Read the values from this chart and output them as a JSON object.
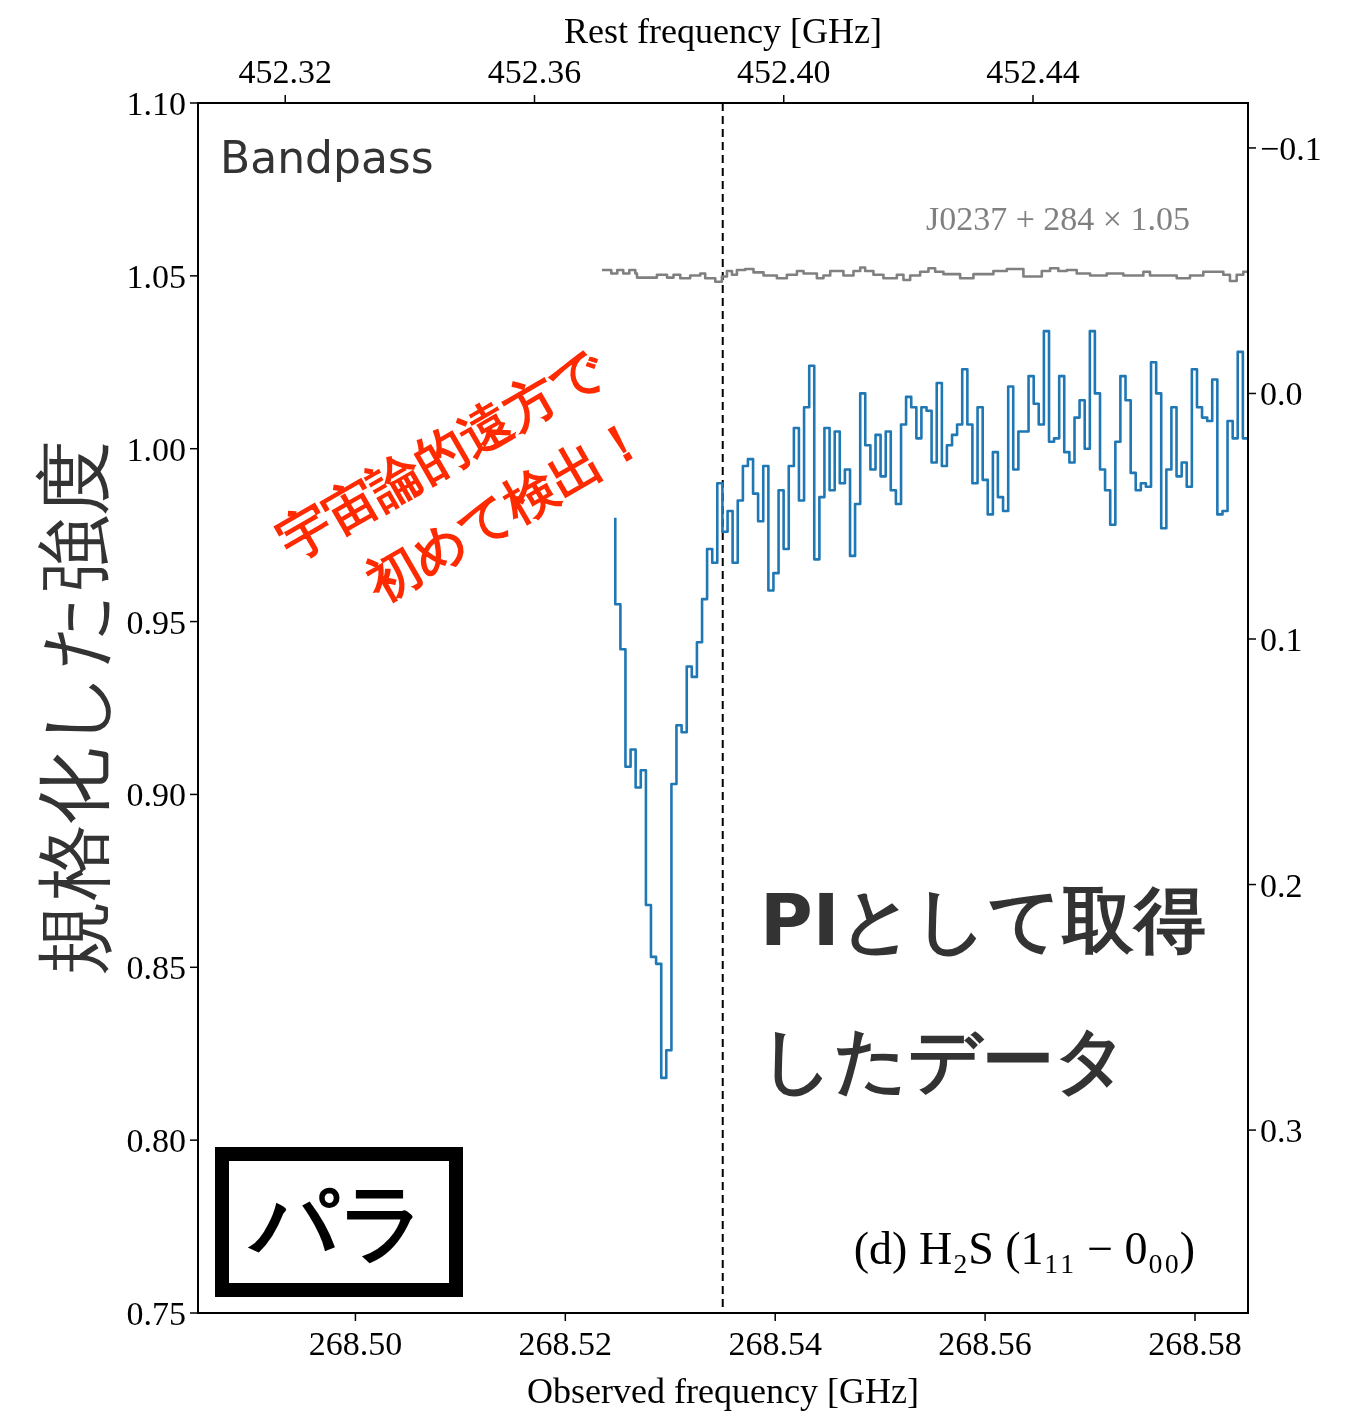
{
  "chart_data": {
    "type": "step",
    "xlabel": "Observed frequency [GHz]",
    "x2label": "Rest frequency [GHz]",
    "ylabel": "規格化した強度",
    "annotations": [
      "Bandpass",
      "宇宙論的遠方で",
      "初めて検出！",
      "PIとして取得",
      "したデータ",
      "パラ",
      "(d) H₂S (1₁₁ − 0₀₀)"
    ],
    "xlim": [
      268.485,
      268.58505
    ],
    "xticks": [
      {
        "value": 268.5,
        "label": "268.50"
      },
      268.52,
      268.54,
      268.56,
      268.58
    ],
    "ylim": [
      0.75,
      1.1
    ],
    "yticks": [
      0.75,
      {
        "value": 0.8,
        "label": "0.80"
      },
      0.85,
      {
        "value": 0.9,
        "label": "0.90"
      },
      0.95,
      {
        "value": 1.0,
        "label": "1.00"
      },
      1.05,
      {
        "value": 1.1,
        "label": "1.10"
      }
    ],
    "x2lim": [
      452.306,
      452.4745
    ],
    "x2ticks": [
      452.32,
      452.36,
      {
        "value": 452.4,
        "label": "452.40"
      },
      452.44
    ],
    "y2lim": [
      0.3745,
      -0.1183
    ],
    "y2ticks": [
      {
        "value": -0.1,
        "label": "−0.1"
      },
      {
        "value": 0,
        "label": "0.0"
      },
      0.1,
      0.2,
      0.3
    ],
    "ref_lines": [
      {
        "axis": "x",
        "value": 268.535,
        "color": "#000000",
        "line_style": "dashed"
      }
    ],
    "series": [
      {
        "color": "#1f77b4",
        "x": [
          268.52476,
          268.52525,
          268.52573,
          268.52622,
          268.5267,
          268.52719,
          268.52768,
          268.52816,
          268.52865,
          268.52914,
          268.52962,
          268.53011,
          268.53059,
          268.53108,
          268.53157,
          268.53205,
          268.53254,
          268.53303,
          268.53351,
          268.534,
          268.53448,
          268.53497,
          268.53546,
          268.53594,
          268.53643,
          268.53692,
          268.5374,
          268.53789,
          268.53837,
          268.53886,
          268.53935,
          268.53983,
          268.54032,
          268.5408,
          268.54129,
          268.54178,
          268.54226,
          268.54275,
          268.54324,
          268.54372,
          268.54421,
          268.54469,
          268.54518,
          268.54567,
          268.54615,
          268.54664,
          268.54713,
          268.54761,
          268.5481,
          268.54858,
          268.54907,
          268.54956,
          268.55004,
          268.55053,
          268.55101,
          268.5515,
          268.55199,
          268.55247,
          268.55296,
          268.55345,
          268.55393,
          268.55442,
          268.5549,
          268.55539,
          268.55588,
          268.55636,
          268.55685,
          268.55733,
          268.55782,
          268.55831,
          268.55879,
          268.55928,
          268.55977,
          268.56025,
          268.56074,
          268.56122,
          268.56171,
          268.5622,
          268.56268,
          268.56317,
          268.56366,
          268.56414,
          268.56463,
          268.56511,
          268.5656,
          268.56609,
          268.56657,
          268.56706,
          268.56754,
          268.56803,
          268.56852,
          268.569,
          268.56949,
          268.56998,
          268.57046,
          268.57095,
          268.57143,
          268.57192,
          268.57241,
          268.57289,
          268.57338,
          268.57387,
          268.57435,
          268.57484,
          268.57532,
          268.57581,
          268.5763,
          268.57678,
          268.57727,
          268.57775,
          268.57824,
          268.57873,
          268.57921,
          268.5797,
          268.58019,
          268.58067,
          268.58116,
          268.58164,
          268.58213,
          268.58262,
          268.5831,
          268.58359,
          268.58407,
          268.58456,
          268.58505
        ],
        "values": [
          0.98,
          0.955,
          0.942,
          0.908,
          0.913,
          0.902,
          0.907,
          0.868,
          0.853,
          0.851,
          0.818,
          0.826,
          0.903,
          0.92,
          0.918,
          0.937,
          0.934,
          0.944,
          0.9565,
          0.971,
          0.967,
          0.99,
          0.976,
          0.982,
          0.967,
          0.985,
          0.995,
          0.997,
          0.987,
          0.979,
          0.995,
          0.959,
          0.964,
          0.988,
          0.971,
          0.995,
          1.006,
          0.985,
          1.012,
          1.024,
          0.968,
          0.986,
          1.006,
          0.988,
          1.005,
          0.99,
          0.994,
          0.969,
          0.984,
          1.016,
          1.001,
          0.994,
          1.004,
          0.992,
          1.005,
          0.988,
          0.984,
          1.007,
          1.015,
          1.012,
          1.003,
          1.012,
          1.011,
          0.996,
          1.019,
          0.995,
          1.001,
          1.004,
          1.007,
          1.023,
          1.007,
          0.99,
          1.012,
          0.991,
          0.981,
          0.999,
          0.986,
          0.982,
          1.018,
          0.994,
          1.005,
          1.005,
          1.021,
          1.013,
          1.007,
          1.034,
          1.002,
          1.003,
          1.021,
          0.999,
          0.996,
          1.009,
          1.014,
          1.0,
          1.034,
          1.016,
          0.994,
          0.988,
          0.978,
          1.002,
          1.021,
          1.014,
          0.993,
          0.988,
          0.99,
          0.989,
          1.025,
          1.016,
          0.977,
          0.994,
          1.012,
          0.992,
          0.996,
          0.989,
          1.023,
          1.012,
          1.009,
          1.008,
          1.02,
          0.981,
          0.982,
          1.008,
          1.003,
          1.028,
          1.003
        ]
      },
      {
        "name": "J0237 + 284 × 1.05",
        "color": "#808080",
        "x": [
          268.5235,
          268.52438,
          268.52495,
          268.52552,
          268.5261,
          268.52667,
          268.52683,
          268.52873,
          268.52969,
          268.53031,
          268.53095,
          268.5319,
          268.53286,
          268.53333,
          268.53429,
          268.53492,
          268.5354,
          268.53588,
          268.53635,
          268.53714,
          268.53793,
          268.53889,
          268.54016,
          268.54111,
          268.54207,
          268.5427,
          268.54397,
          268.5446,
          268.54524,
          268.5465,
          268.54746,
          268.5481,
          268.54857,
          268.54936,
          268.55031,
          268.55159,
          268.55222,
          268.55286,
          268.55381,
          268.5546,
          268.55524,
          268.55603,
          268.55762,
          268.55889,
          268.56079,
          268.56207,
          268.56365,
          268.5654,
          268.56619,
          268.56698,
          268.56778,
          268.56873,
          268.57,
          268.57159,
          268.57317,
          268.57508,
          268.57571,
          268.57826,
          268.57952,
          268.58079,
          268.5827,
          268.58333,
          268.58397,
          268.5846,
          268.58505
        ],
        "values": [
          1.0517,
          1.0517,
          1.0507,
          1.0517,
          1.0507,
          1.0517,
          1.0507,
          1.0495,
          1.0503,
          1.0495,
          1.0503,
          1.0493,
          1.0501,
          1.0507,
          1.0493,
          1.0483,
          1.0498,
          1.0514,
          1.0503,
          1.0517,
          1.052,
          1.051,
          1.0501,
          1.0493,
          1.0503,
          1.0514,
          1.0507,
          1.0493,
          1.0501,
          1.0514,
          1.0501,
          1.0514,
          1.0524,
          1.0514,
          1.0503,
          1.0493,
          1.0503,
          1.0488,
          1.0501,
          1.0512,
          1.0522,
          1.0512,
          1.0505,
          1.0493,
          1.0505,
          1.0514,
          1.052,
          1.0498,
          1.0514,
          1.0522,
          1.0514,
          1.0517,
          1.0507,
          1.0501,
          1.0507,
          1.0501,
          1.0512,
          1.0501,
          1.0493,
          1.0501,
          1.0512,
          1.0503,
          1.0485,
          1.0503,
          1.0512
        ]
      }
    ]
  }
}
